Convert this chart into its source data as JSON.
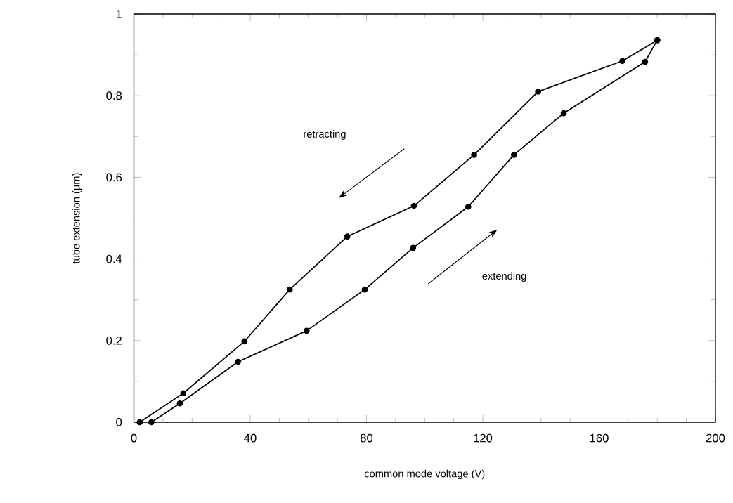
{
  "chart_data": {
    "type": "line",
    "xlabel": "common mode voltage (V)",
    "ylabel": "tube extension (µm)",
    "annotations": [
      "retracting",
      "extending"
    ],
    "series": [
      {
        "color": "#000000",
        "x": [
          2,
          17,
          38,
          53.6,
          73.4,
          96.3,
          117,
          139,
          168,
          180
        ],
        "values": [
          0,
          0.071,
          0.198,
          0.325,
          0.455,
          0.53,
          0.655,
          0.81,
          0.885,
          0.936
        ]
      },
      {
        "color": "#000000",
        "x": [
          6,
          15.8,
          35.8,
          59.4,
          79.4,
          96,
          115,
          130.7,
          147.8,
          175.8,
          180
        ],
        "values": [
          0,
          0.046,
          0.148,
          0.224,
          0.325,
          0.427,
          0.528,
          0.655,
          0.757,
          0.883,
          0.936
        ]
      }
    ],
    "xlim": [
      0,
      200
    ],
    "ylim": [
      0,
      1
    ],
    "xticks": [
      0,
      40,
      80,
      120,
      160,
      200
    ],
    "yticks": [
      0,
      0.2,
      0.4,
      0.6,
      0.8,
      1
    ],
    "marker": "circle",
    "line_style": "solid",
    "grid": false
  }
}
